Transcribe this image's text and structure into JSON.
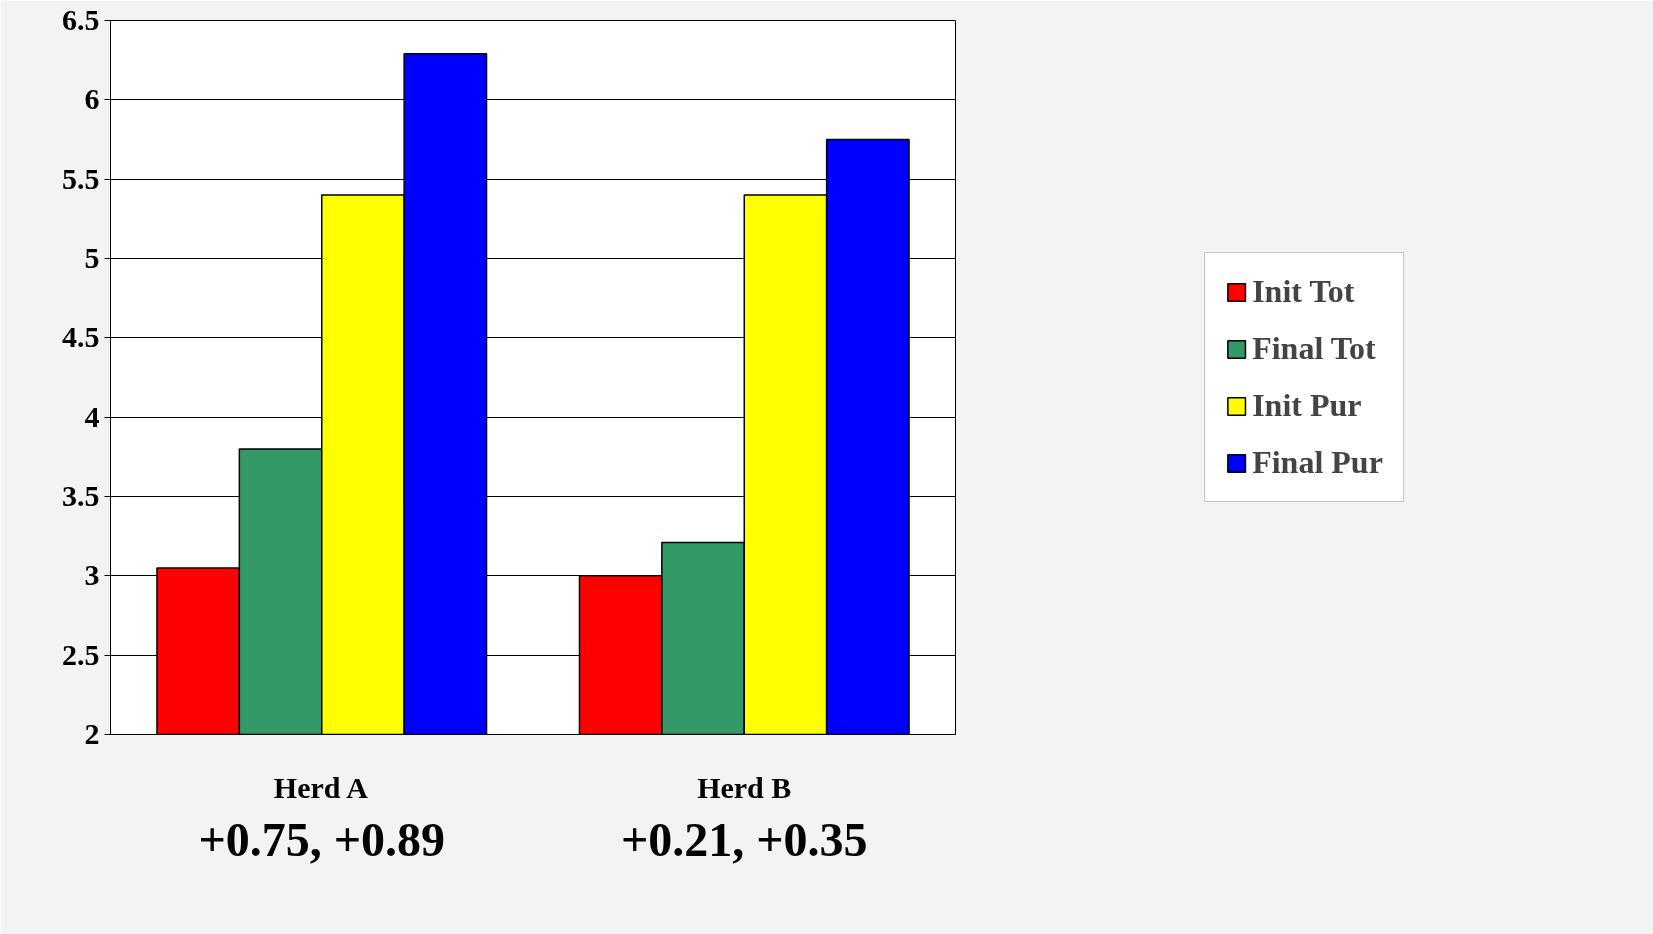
{
  "chart_data": {
    "type": "bar",
    "categories": [
      "Herd A",
      "Herd B"
    ],
    "series": [
      {
        "name": "Init Tot",
        "color": "#ff0000",
        "values": [
          3.05,
          3.0
        ]
      },
      {
        "name": "Final Tot",
        "color": "#339966",
        "values": [
          3.8,
          3.21
        ]
      },
      {
        "name": "Init Pur",
        "color": "#ffff00",
        "values": [
          5.4,
          5.4
        ]
      },
      {
        "name": "Final Pur",
        "color": "#0000ff",
        "values": [
          6.29,
          5.75
        ]
      }
    ],
    "ylim": [
      2,
      6.5
    ],
    "yticks": [
      2,
      2.5,
      3,
      3.5,
      4,
      4.5,
      5,
      5.5,
      6,
      6.5
    ],
    "grid": "y",
    "legend": "right",
    "annotations": [
      "+0.75, +0.89",
      "+0.21, +0.35"
    ]
  }
}
